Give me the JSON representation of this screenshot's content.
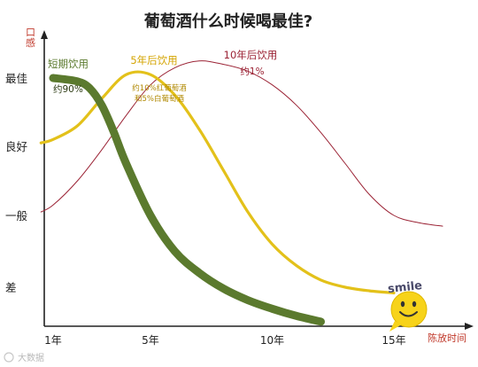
{
  "chart_data": {
    "type": "line",
    "title": "葡萄酒什么时候喝最佳?",
    "ylabel": "口感",
    "xlabel": "陈放时间",
    "y_tick_labels": [
      "最佳",
      "良好",
      "一般",
      "差"
    ],
    "y_levels": [
      4,
      3,
      2,
      1
    ],
    "x_tick_labels": [
      "1年",
      "5年",
      "10年",
      "15年"
    ],
    "x_ticks": [
      1,
      5,
      10,
      15
    ],
    "xlim": [
      0.5,
      17.5
    ],
    "ylim": [
      0.5,
      4.6
    ],
    "grid": false,
    "series": [
      {
        "name": "短期饮用",
        "note": "约90%",
        "color": "#5b7a2e",
        "x": [
          1,
          2,
          2.5,
          3,
          3.5,
          4,
          5,
          6,
          7,
          8,
          9,
          10,
          11,
          12
        ],
        "y": [
          4.0,
          3.95,
          3.85,
          3.6,
          3.2,
          2.75,
          2.0,
          1.5,
          1.2,
          0.98,
          0.82,
          0.7,
          0.6,
          0.52
        ]
      },
      {
        "name": "5年后饮用",
        "note": "约10%红葡萄酒 和5%白葡萄酒",
        "color": "#e3c11a",
        "x": [
          0.5,
          1,
          2,
          3,
          4,
          5,
          6,
          7,
          8,
          9,
          10,
          11,
          12,
          13,
          14,
          15
        ],
        "y": [
          3.05,
          3.1,
          3.3,
          3.7,
          4.05,
          4.05,
          3.75,
          3.25,
          2.65,
          2.05,
          1.6,
          1.3,
          1.1,
          1.0,
          0.95,
          0.92
        ]
      },
      {
        "name": "10年后饮用",
        "note": "约1%",
        "color": "#9b2335",
        "x": [
          0.5,
          1,
          2,
          3,
          4,
          5,
          6,
          7,
          8,
          9,
          10,
          11,
          12,
          13,
          14,
          15,
          16,
          17
        ],
        "y": [
          2.05,
          2.15,
          2.5,
          2.95,
          3.45,
          3.9,
          4.15,
          4.25,
          4.2,
          4.1,
          3.9,
          3.6,
          3.2,
          2.75,
          2.3,
          2.0,
          1.9,
          1.85
        ]
      }
    ]
  },
  "sticker": {
    "text": "smile",
    "face_color": "#f7d31a"
  },
  "watermark": {
    "text": "大数据"
  },
  "colors": {
    "green": "#5b7a2e",
    "yellow": "#e3c11a",
    "red": "#9b2335",
    "axis": "#222222",
    "accent_label": "#c0392b"
  }
}
